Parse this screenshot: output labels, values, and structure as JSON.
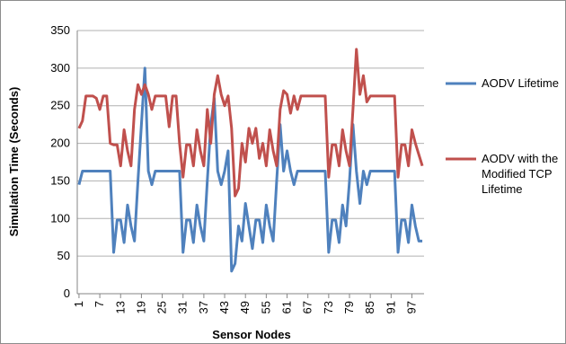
{
  "chart_data": {
    "type": "line",
    "x_label": "Sensor Nodes",
    "y_label": "Simulation Time (Seconds)",
    "x": [
      1,
      2,
      3,
      4,
      5,
      6,
      7,
      8,
      9,
      10,
      11,
      12,
      13,
      14,
      15,
      16,
      17,
      18,
      19,
      20,
      21,
      22,
      23,
      24,
      25,
      26,
      27,
      28,
      29,
      30,
      31,
      32,
      33,
      34,
      35,
      36,
      37,
      38,
      39,
      40,
      41,
      42,
      43,
      44,
      45,
      46,
      47,
      48,
      49,
      50,
      51,
      52,
      53,
      54,
      55,
      56,
      57,
      58,
      59,
      60,
      61,
      62,
      63,
      64,
      65,
      66,
      67,
      68,
      69,
      70,
      71,
      72,
      73,
      74,
      75,
      76,
      77,
      78,
      79,
      80,
      81,
      82,
      83,
      84,
      85,
      86,
      87,
      88,
      89,
      90,
      91,
      92,
      93,
      94,
      95,
      96,
      97,
      98,
      99,
      100
    ],
    "xlim": [
      0.5,
      100.5
    ],
    "xticks": [
      1,
      7,
      13,
      19,
      25,
      31,
      37,
      43,
      49,
      55,
      61,
      67,
      73,
      79,
      85,
      91,
      97
    ],
    "ylim": [
      0,
      350
    ],
    "yticks": [
      0,
      50,
      100,
      150,
      200,
      250,
      300,
      350
    ],
    "grid": true,
    "legend": "right",
    "series": [
      {
        "name": "AODV Lifetime",
        "color": "#4f81bd",
        "values": [
          145,
          163,
          163,
          163,
          163,
          163,
          163,
          163,
          163,
          163,
          55,
          98,
          98,
          68,
          118,
          90,
          70,
          150,
          225,
          300,
          163,
          145,
          163,
          163,
          163,
          163,
          163,
          163,
          163,
          163,
          55,
          98,
          98,
          68,
          118,
          90,
          70,
          150,
          225,
          260,
          163,
          145,
          163,
          190,
          30,
          40,
          90,
          70,
          120,
          90,
          60,
          98,
          98,
          68,
          118,
          90,
          70,
          150,
          225,
          163,
          190,
          163,
          145,
          163,
          163,
          163,
          163,
          163,
          163,
          163,
          163,
          163,
          55,
          98,
          98,
          68,
          118,
          90,
          150,
          225,
          163,
          120,
          163,
          145,
          163,
          163,
          163,
          163,
          163,
          163,
          163,
          163,
          55,
          98,
          98,
          68,
          118,
          90,
          70,
          70
        ]
      },
      {
        "name": "AODV with the Modified TCP Lifetime",
        "color": "#c0504d",
        "values": [
          220,
          230,
          263,
          263,
          263,
          260,
          245,
          263,
          263,
          200,
          198,
          198,
          170,
          218,
          190,
          170,
          245,
          278,
          265,
          278,
          265,
          245,
          263,
          263,
          263,
          263,
          222,
          263,
          263,
          200,
          155,
          198,
          198,
          170,
          218,
          190,
          170,
          245,
          200,
          265,
          290,
          265,
          250,
          263,
          220,
          130,
          140,
          200,
          175,
          220,
          200,
          220,
          180,
          200,
          170,
          218,
          190,
          170,
          245,
          270,
          265,
          240,
          263,
          245,
          263,
          263,
          263,
          263,
          263,
          263,
          263,
          263,
          155,
          198,
          198,
          170,
          218,
          190,
          170,
          245,
          325,
          265,
          290,
          255,
          263,
          263,
          263,
          263,
          263,
          263,
          263,
          263,
          155,
          198,
          198,
          170,
          218,
          200,
          185,
          170
        ]
      }
    ]
  }
}
